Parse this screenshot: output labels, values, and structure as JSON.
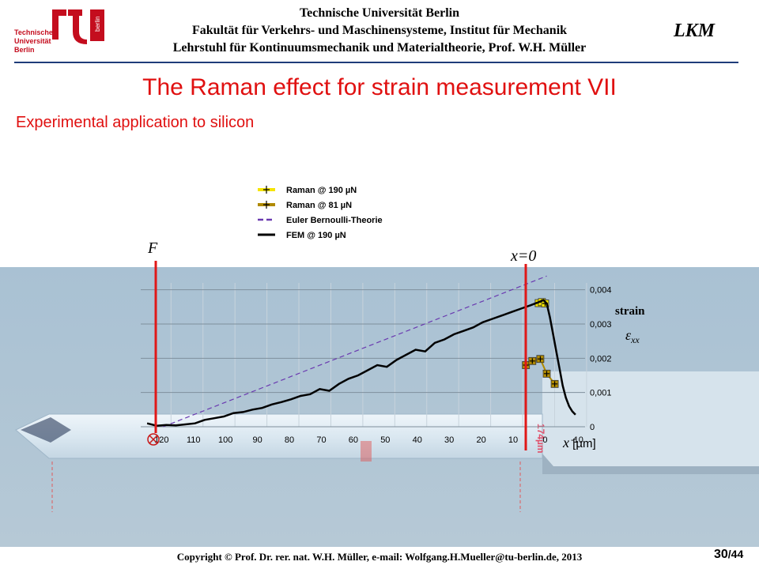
{
  "header": {
    "line1": "Technische Universität Berlin",
    "line2": "Fakultät für Verkehrs- und Maschinensysteme, Institut für Mechanik",
    "line3": "Lehrstuhl für Kontinuumsmechanik und Materialtheorie, Prof. W.H. Müller",
    "logo_text": [
      "Technische",
      "Universität",
      "Berlin"
    ],
    "logo_side": "berlin",
    "lkm": "LKM"
  },
  "title": "The Raman effect for strain measurement VII",
  "subtitle": "Experimental application to silicon",
  "annotations": {
    "force": "F",
    "origin": "x=0",
    "y_name": "strain",
    "y_symbol": "ε",
    "y_sub": "xx",
    "x_axis": "x",
    "x_unit": " [µm]",
    "dim_mark": "174µm"
  },
  "chart_data": {
    "type": "line",
    "title": "",
    "xlabel": "x [µm]",
    "ylabel": "strain εxx",
    "xlim": [
      127,
      -12
    ],
    "ylim": [
      0,
      0.0042
    ],
    "x_ticks": [
      120,
      110,
      100,
      90,
      80,
      70,
      60,
      50,
      40,
      30,
      20,
      10,
      0,
      -10
    ],
    "y_ticks": [
      0,
      0.001,
      0.002,
      0.003,
      0.004
    ],
    "y_tick_labels": [
      "0",
      "0,001",
      "0,002",
      "0,003",
      "0,004"
    ],
    "grid": true,
    "legend_position": "top-center",
    "series": [
      {
        "name": "Raman @ 190 µN",
        "style": "points",
        "color": "#f5e400",
        "x": [
          2.5,
          1.5,
          0.5
        ],
        "y": [
          0.00361,
          0.00364,
          0.0036
        ]
      },
      {
        "name": "Raman @ 81 µN",
        "style": "points",
        "color": "#b08a00",
        "x": [
          6.5,
          4.5,
          2,
          0,
          -2.5
        ],
        "y": [
          0.0018,
          0.00192,
          0.00198,
          0.00155,
          0.00125
        ]
      },
      {
        "name": "Euler Bernoulli-Theorie",
        "style": "dashed",
        "color": "#6a3ab0",
        "x": [
          120,
          0
        ],
        "y": [
          0,
          0.0044
        ]
      },
      {
        "name": "FEM @ 190 µN",
        "style": "solid",
        "color": "#000000",
        "x": [
          125,
          122,
          119,
          116,
          113,
          110,
          107,
          104,
          101,
          98,
          95,
          92,
          89,
          86,
          83,
          80,
          77,
          74,
          71,
          68,
          65,
          62,
          59,
          56,
          53,
          50,
          47,
          44,
          41,
          38,
          35,
          32,
          29,
          26,
          23,
          20,
          17,
          14,
          11,
          8,
          5,
          3,
          1,
          0,
          -1,
          -2,
          -3,
          -4,
          -5,
          -6,
          -7,
          -8,
          -9
        ],
        "y": [
          0.0001,
          3e-05,
          5e-05,
          4e-05,
          7e-05,
          0.0001,
          0.0002,
          0.00025,
          0.0003,
          0.0004,
          0.00043,
          0.0005,
          0.00055,
          0.00065,
          0.00072,
          0.0008,
          0.0009,
          0.00095,
          0.0011,
          0.00105,
          0.00125,
          0.0014,
          0.0015,
          0.00165,
          0.0018,
          0.00175,
          0.00195,
          0.0021,
          0.00225,
          0.0022,
          0.00245,
          0.00255,
          0.0027,
          0.0028,
          0.0029,
          0.00305,
          0.00315,
          0.00325,
          0.00335,
          0.00345,
          0.00355,
          0.00362,
          0.0037,
          0.0036,
          0.0032,
          0.0027,
          0.0022,
          0.0017,
          0.0012,
          0.00085,
          0.0006,
          0.00045,
          0.00035
        ]
      }
    ]
  },
  "footer": {
    "copyright": "Copyright © Prof. Dr. rer. nat. W.H. Müller, e-mail: Wolfgang.H.Mueller@tu-berlin.de, 2013",
    "page": "30",
    "total": "/44"
  }
}
